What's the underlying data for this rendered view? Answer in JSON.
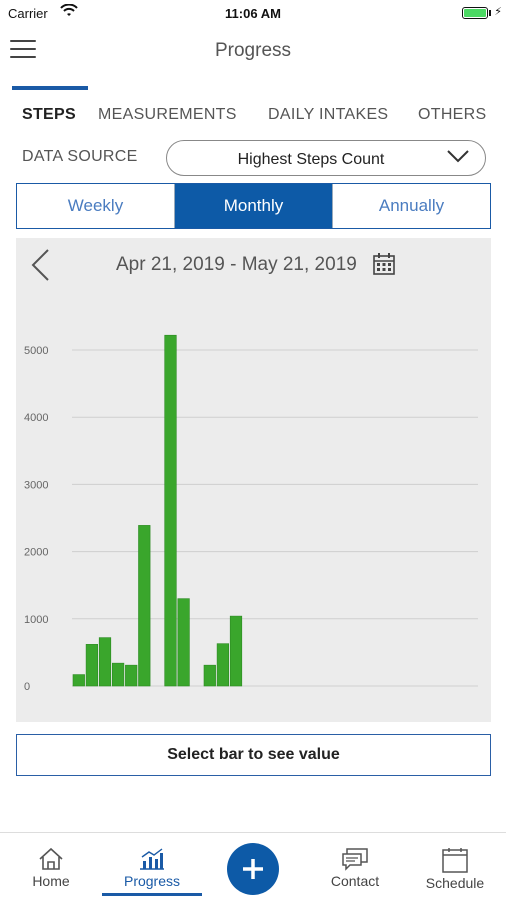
{
  "status_bar": {
    "carrier": "Carrier",
    "time": "11:06 AM"
  },
  "header": {
    "title": "Progress"
  },
  "tabs": [
    {
      "label": "STEPS",
      "active": true
    },
    {
      "label": "MEASUREMENTS",
      "active": false
    },
    {
      "label": "DAILY INTAKES",
      "active": false
    },
    {
      "label": "OTHERS",
      "active": false
    }
  ],
  "data_source": {
    "label": "DATA SOURCE",
    "selected": "Highest Steps Count"
  },
  "periods": [
    {
      "label": "Weekly",
      "active": false
    },
    {
      "label": "Monthly",
      "active": true
    },
    {
      "label": "Annually",
      "active": false
    }
  ],
  "date_range": "Apr 21, 2019 - May 21, 2019",
  "chart_data": {
    "type": "bar",
    "color": "#3aa62c",
    "ylim": [
      0,
      5000
    ],
    "yticks": [
      0,
      1000,
      2000,
      3000,
      4000,
      5000
    ],
    "grid": true,
    "values": [
      170,
      620,
      720,
      340,
      310,
      2390,
      0,
      5220,
      1300,
      0,
      310,
      630,
      1040,
      0,
      0,
      0,
      0,
      0,
      0,
      0,
      0,
      0,
      0,
      0,
      0,
      0,
      0,
      0,
      0,
      0,
      0
    ]
  },
  "value_box": "Select bar to see value",
  "bottom_nav": {
    "home": "Home",
    "progress": "Progress",
    "contact": "Contact",
    "schedule": "Schedule"
  },
  "colors": {
    "accent": "#0d5aa7",
    "bar": "#3aa62c"
  }
}
